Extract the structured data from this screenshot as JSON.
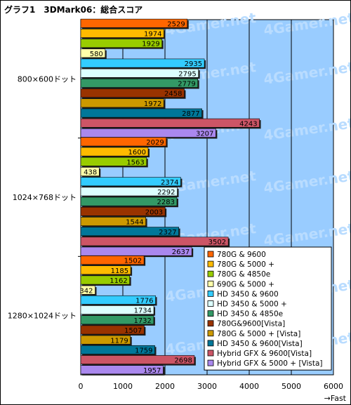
{
  "title": "グラフ1　3DMark06：総合スコア",
  "chart_data": {
    "type": "bar",
    "orientation": "horizontal",
    "title": "グラフ1　3DMark06：総合スコア",
    "categories": [
      "800×600ドット",
      "1024×768ドット",
      "1280×1024ドット"
    ],
    "x_ticks": [
      "0",
      "1000",
      "2000",
      "3000",
      "4000",
      "5000",
      "6000"
    ],
    "xlim": [
      0,
      6000
    ],
    "xlabel": "→Fast",
    "grid": true,
    "plot_bg": "#99ccff",
    "legend_position": "bottom-right",
    "watermark": "4Gamer.net",
    "series": [
      {
        "name": "780G & 9600",
        "color": "#ff6600",
        "values": [
          2529,
          2029,
          1502
        ]
      },
      {
        "name": "780G & 5000 +",
        "color": "#ffbb00",
        "values": [
          1974,
          1600,
          1185
        ]
      },
      {
        "name": "780G & 4850e",
        "color": "#99cc00",
        "values": [
          1929,
          1563,
          1162
        ]
      },
      {
        "name": "690G & 5000 +",
        "color": "#ffffaa",
        "values": [
          580,
          438,
          342
        ]
      },
      {
        "name": "HD 3450 & 9600",
        "color": "#33ccff",
        "values": [
          2935,
          2374,
          1776
        ]
      },
      {
        "name": "HD 3450 & 5000 +",
        "color": "#ddffff",
        "values": [
          2795,
          2292,
          1734
        ]
      },
      {
        "name": "HD 3450 & 4850e",
        "color": "#339966",
        "values": [
          2779,
          2283,
          1732
        ]
      },
      {
        "name": "780G&9600[Vista]",
        "color": "#993300",
        "values": [
          2458,
          2003,
          1507
        ]
      },
      {
        "name": "780G & 5000 + [Vista]",
        "color": "#cc9900",
        "values": [
          1972,
          1544,
          1179
        ]
      },
      {
        "name": "HD 3450 & 9600[Vista]",
        "color": "#007799",
        "values": [
          2877,
          2327,
          1759
        ]
      },
      {
        "name": "Hybrid GFX & 9600[Vista]",
        "color": "#cc5566",
        "values": [
          4243,
          3502,
          2698
        ]
      },
      {
        "name": "Hybrid GFX & 5000 + [Vista]",
        "color": "#aa88ee",
        "values": [
          3207,
          2637,
          1957
        ]
      }
    ]
  }
}
